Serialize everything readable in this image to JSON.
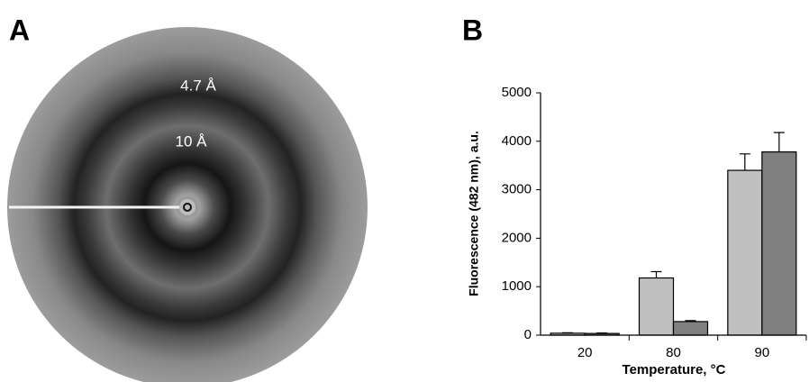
{
  "panel_a": {
    "label": "A",
    "annotations": [
      "4.7 Å",
      "10 Å"
    ]
  },
  "chart_data": {
    "type": "bar",
    "panel_label": "B",
    "x_label": "Temperature, °C",
    "y_label": "Fluorescence (482 nm), a.u.",
    "categories": [
      "20",
      "80",
      "90"
    ],
    "series": [
      {
        "color": "#c0c0c0",
        "values": [
          40,
          1180,
          3400
        ],
        "errors": [
          10,
          130,
          340
        ]
      },
      {
        "color": "#808080",
        "values": [
          35,
          280,
          3780
        ],
        "errors": [
          10,
          20,
          400
        ]
      }
    ],
    "ylim": [
      0,
      5000
    ],
    "yticks": [
      0,
      1000,
      2000,
      3000,
      4000,
      5000
    ],
    "grid": false
  }
}
